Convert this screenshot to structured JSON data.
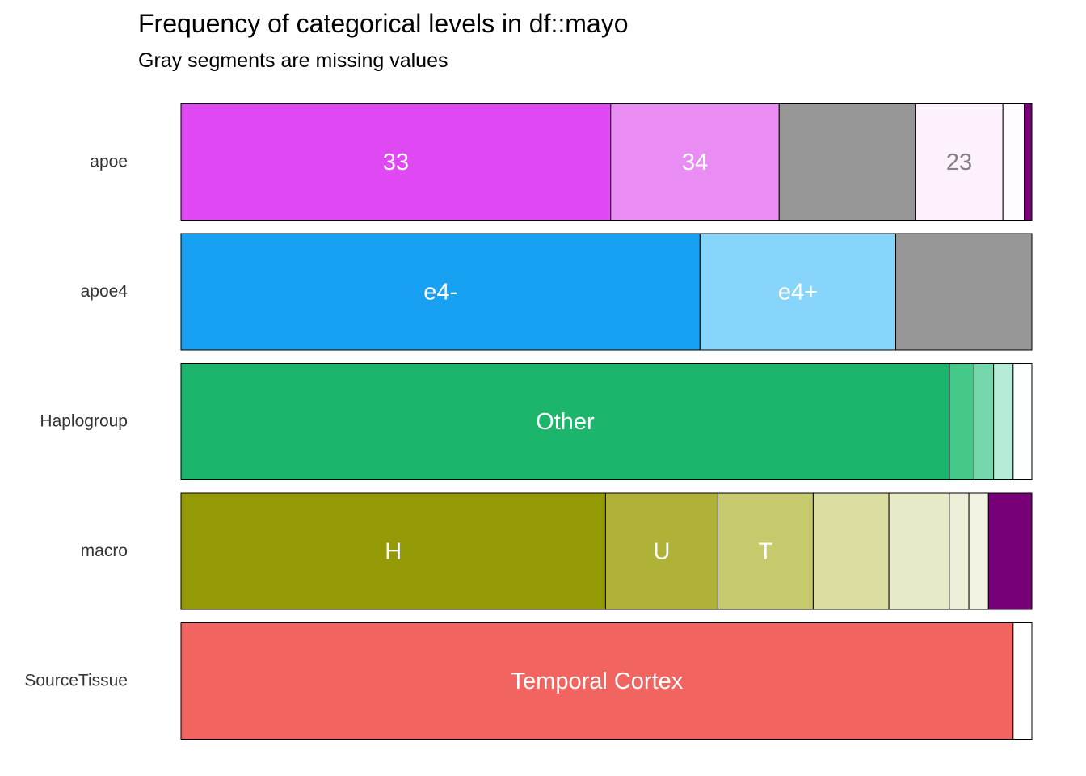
{
  "chart_data": {
    "type": "bar",
    "orientation": "horizontal-stacked-proportion",
    "title": "Frequency of categorical levels in df::mayo",
    "subtitle": "Gray segments are missing values",
    "xlim": [
      0,
      1
    ],
    "grid": false,
    "legend": "none",
    "series": [
      {
        "name": "apoe",
        "segments": [
          {
            "label": "33",
            "fraction": 0.505,
            "color": "#DF48F2",
            "text_color": "#ffffff"
          },
          {
            "label": "34",
            "fraction": 0.198,
            "color": "#E98DF5",
            "text_color": "#ffffff"
          },
          {
            "label": "",
            "fraction": 0.16,
            "color": "#969696",
            "text_color": "#ffffff"
          },
          {
            "label": "23",
            "fraction": 0.103,
            "color": "#FCF1FD",
            "text_color": "#808080"
          },
          {
            "label": "",
            "fraction": 0.025,
            "color": "#FFFBFF",
            "text_color": "#808080"
          },
          {
            "label": "",
            "fraction": 0.009,
            "color": "#770078",
            "text_color": "#ffffff"
          }
        ]
      },
      {
        "name": "apoe4",
        "segments": [
          {
            "label": "e4-",
            "fraction": 0.61,
            "color": "#18A0F2",
            "text_color": "#ffffff"
          },
          {
            "label": "e4+",
            "fraction": 0.23,
            "color": "#87D5FB",
            "text_color": "#ffffff"
          },
          {
            "label": "",
            "fraction": 0.16,
            "color": "#969696",
            "text_color": "#ffffff"
          }
        ]
      },
      {
        "name": "Haplogroup",
        "segments": [
          {
            "label": "Other",
            "fraction": 0.903,
            "color": "#1BB56C",
            "text_color": "#ffffff"
          },
          {
            "label": "",
            "fraction": 0.029,
            "color": "#45C98A",
            "text_color": "#ffffff"
          },
          {
            "label": "",
            "fraction": 0.023,
            "color": "#74D6AA",
            "text_color": "#ffffff"
          },
          {
            "label": "",
            "fraction": 0.023,
            "color": "#B5EBD7",
            "text_color": "#ffffff"
          },
          {
            "label": "",
            "fraction": 0.022,
            "color": "#FDFFFE",
            "text_color": "#808080"
          }
        ]
      },
      {
        "name": "macro",
        "segments": [
          {
            "label": "H",
            "fraction": 0.499,
            "color": "#949A05",
            "text_color": "#ffffff"
          },
          {
            "label": "U",
            "fraction": 0.132,
            "color": "#AFB236",
            "text_color": "#ffffff"
          },
          {
            "label": "T",
            "fraction": 0.112,
            "color": "#C6CA6C",
            "text_color": "#ffffff"
          },
          {
            "label": "",
            "fraction": 0.089,
            "color": "#DBDDA1",
            "text_color": "#ffffff"
          },
          {
            "label": "",
            "fraction": 0.071,
            "color": "#E8E9C6",
            "text_color": "#ffffff"
          },
          {
            "label": "",
            "fraction": 0.023,
            "color": "#EDEED8",
            "text_color": "#ffffff"
          },
          {
            "label": "",
            "fraction": 0.023,
            "color": "#F1F2E1",
            "text_color": "#ffffff"
          },
          {
            "label": "",
            "fraction": 0.051,
            "color": "#770078",
            "text_color": "#ffffff"
          }
        ]
      },
      {
        "name": "SourceTissue",
        "segments": [
          {
            "label": "Temporal Cortex",
            "fraction": 0.978,
            "color": "#F2645F",
            "text_color": "#ffffff"
          },
          {
            "label": "",
            "fraction": 0.022,
            "color": "#FFFFFF",
            "text_color": "#808080"
          }
        ]
      }
    ]
  }
}
